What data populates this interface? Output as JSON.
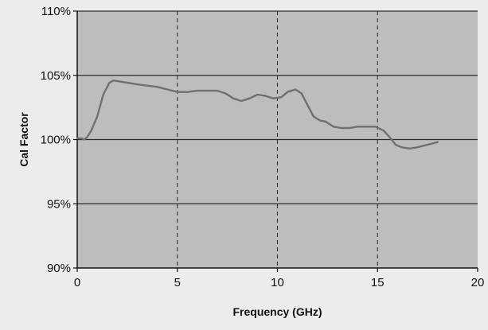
{
  "chart_data": {
    "type": "line",
    "title": "",
    "xlabel": "Frequency (GHz)",
    "ylabel": "Cal Factor",
    "xlim": [
      0,
      20
    ],
    "ylim": [
      90,
      110
    ],
    "x_ticks": [
      0,
      5,
      10,
      15,
      20
    ],
    "y_ticks": [
      90,
      95,
      100,
      105,
      110
    ],
    "x_tick_labels": [
      "0",
      "5",
      "10",
      "15",
      "20"
    ],
    "y_tick_labels": [
      "90%",
      "95%",
      "100%",
      "105%",
      "110%"
    ],
    "grid": {
      "horizontal": "solid",
      "vertical": "dashed"
    },
    "legend": "none",
    "series": [
      {
        "color": "#707070",
        "x": [
          0.0,
          0.2,
          0.35,
          0.5,
          0.7,
          1.0,
          1.3,
          1.6,
          1.8,
          2.2,
          2.6,
          3.0,
          3.5,
          4.0,
          4.5,
          5.0,
          5.5,
          6.0,
          6.5,
          7.0,
          7.4,
          7.8,
          8.2,
          8.6,
          9.0,
          9.4,
          9.8,
          10.2,
          10.5,
          10.9,
          11.2,
          11.5,
          11.8,
          12.1,
          12.4,
          12.8,
          13.2,
          13.6,
          14.0,
          14.5,
          14.9,
          15.3,
          15.6,
          15.9,
          16.2,
          16.6,
          17.0,
          17.5,
          18.0
        ],
        "y": [
          100.1,
          100.1,
          100.0,
          100.2,
          100.7,
          101.8,
          103.5,
          104.4,
          104.6,
          104.5,
          104.4,
          104.3,
          104.2,
          104.1,
          103.9,
          103.7,
          103.7,
          103.8,
          103.8,
          103.8,
          103.6,
          103.2,
          103.0,
          103.2,
          103.5,
          103.4,
          103.2,
          103.3,
          103.7,
          103.9,
          103.6,
          102.7,
          101.8,
          101.5,
          101.4,
          101.0,
          100.9,
          100.9,
          101.0,
          101.0,
          101.0,
          100.7,
          100.2,
          99.6,
          99.4,
          99.3,
          99.4,
          99.6,
          99.8
        ]
      }
    ]
  }
}
